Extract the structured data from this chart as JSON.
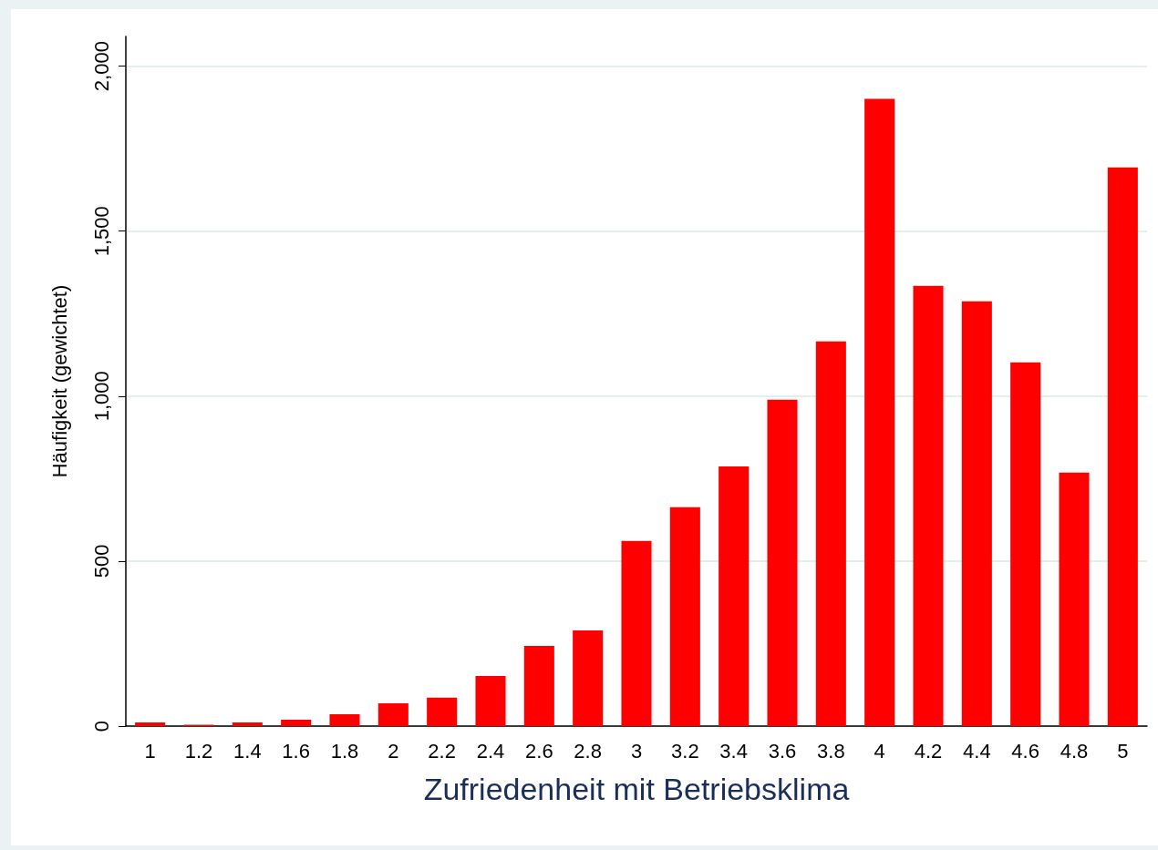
{
  "chart_data": {
    "type": "bar",
    "xlabel": "Zufriedenheit mit Betriebsklima",
    "ylabel": "Häufigkeit (gewichtet)",
    "categories": [
      "1",
      "1.2",
      "1.4",
      "1.6",
      "1.8",
      "2",
      "2.2",
      "2.4",
      "2.6",
      "2.8",
      "3",
      "3.2",
      "3.4",
      "3.6",
      "3.8",
      "4",
      "4.2",
      "4.4",
      "4.6",
      "4.8",
      "5"
    ],
    "values": [
      11,
      4,
      11,
      19,
      36,
      69,
      86,
      152,
      243,
      290,
      561,
      663,
      787,
      989,
      1166,
      1901,
      1334,
      1287,
      1102,
      768,
      1693
    ],
    "color": "#ff0000",
    "ylim": [
      0,
      2090
    ],
    "yticks": [
      0,
      500,
      {
        "value": 1000,
        "label": "1,000"
      },
      {
        "value": 1500,
        "label": "1,500"
      },
      {
        "value": 2000,
        "label": "2,000"
      }
    ],
    "grid": "y"
  }
}
